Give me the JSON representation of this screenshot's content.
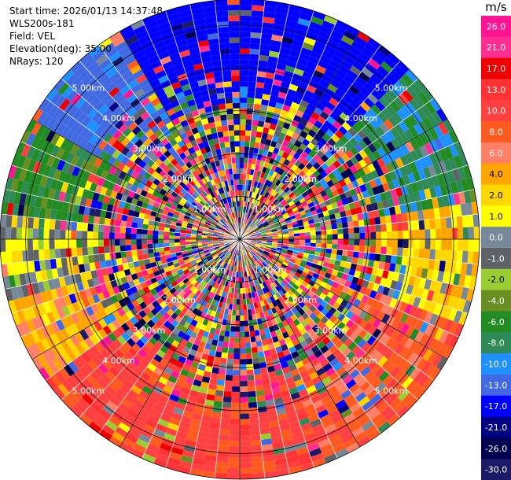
{
  "header": {
    "start_time": "Start time: 2026/01/13 14:37:48",
    "instrument": "WLS200s-181",
    "field": "Field: VEL",
    "elevation": "Elevation(deg): 35.00",
    "nrays": "NRays: 120"
  },
  "chart_data": {
    "type": "heatmap",
    "projection": "polar-ppi",
    "field": "VEL",
    "units": "m/s",
    "elevation_deg": 35.0,
    "n_rays": 120,
    "range_rings_km": [
      1,
      2,
      3,
      4,
      5
    ],
    "range_ring_labels": [
      "1.00km",
      "2.00km",
      "3.00km",
      "4.00km",
      "5.00km"
    ],
    "max_range_km": 5.6,
    "colorbar": {
      "ticks": [
        "26.0",
        "21.0",
        "17.0",
        "13.0",
        "10.0",
        "8.0",
        "6.0",
        "4.0",
        "2.0",
        "1.0",
        "0.0",
        "-1.0",
        "-2.0",
        "-4.0",
        "-6.0",
        "-8.0",
        "-10.0",
        "-13.0",
        "-17.0",
        "-21.0",
        "-26.0",
        "-30.0"
      ],
      "colors": [
        "#ff1493",
        "#ff2f92",
        "#ee0000",
        "#ff3333",
        "#ff4040",
        "#ff5a1f",
        "#ff8066",
        "#ffa500",
        "#ffd700",
        "#ffff00",
        "#778899",
        "#5f6368",
        "#9acd32",
        "#6b8e23",
        "#228b22",
        "#2e8b57",
        "#1e90ff",
        "#4169e1",
        "#0000ff",
        "#000080",
        "#000050",
        "#1a1a66"
      ]
    },
    "coherent_sectors": [
      {
        "az_from": 330,
        "az_to": 45,
        "value_ms": -17.0
      },
      {
        "az_from": 45,
        "az_to": 80,
        "value_ms": -8.0
      },
      {
        "az_from": 80,
        "az_to": 110,
        "value_ms": 2.0
      },
      {
        "az_from": 110,
        "az_to": 160,
        "value_ms": 8.0
      },
      {
        "az_from": 160,
        "az_to": 235,
        "value_ms": 10.0
      },
      {
        "az_from": 235,
        "az_to": 255,
        "value_ms": 4.0
      },
      {
        "az_from": 255,
        "az_to": 275,
        "value_ms": 0.0
      },
      {
        "az_from": 275,
        "az_to": 300,
        "value_ms": -6.0
      },
      {
        "az_from": 300,
        "az_to": 330,
        "value_ms": -13.0
      }
    ]
  }
}
